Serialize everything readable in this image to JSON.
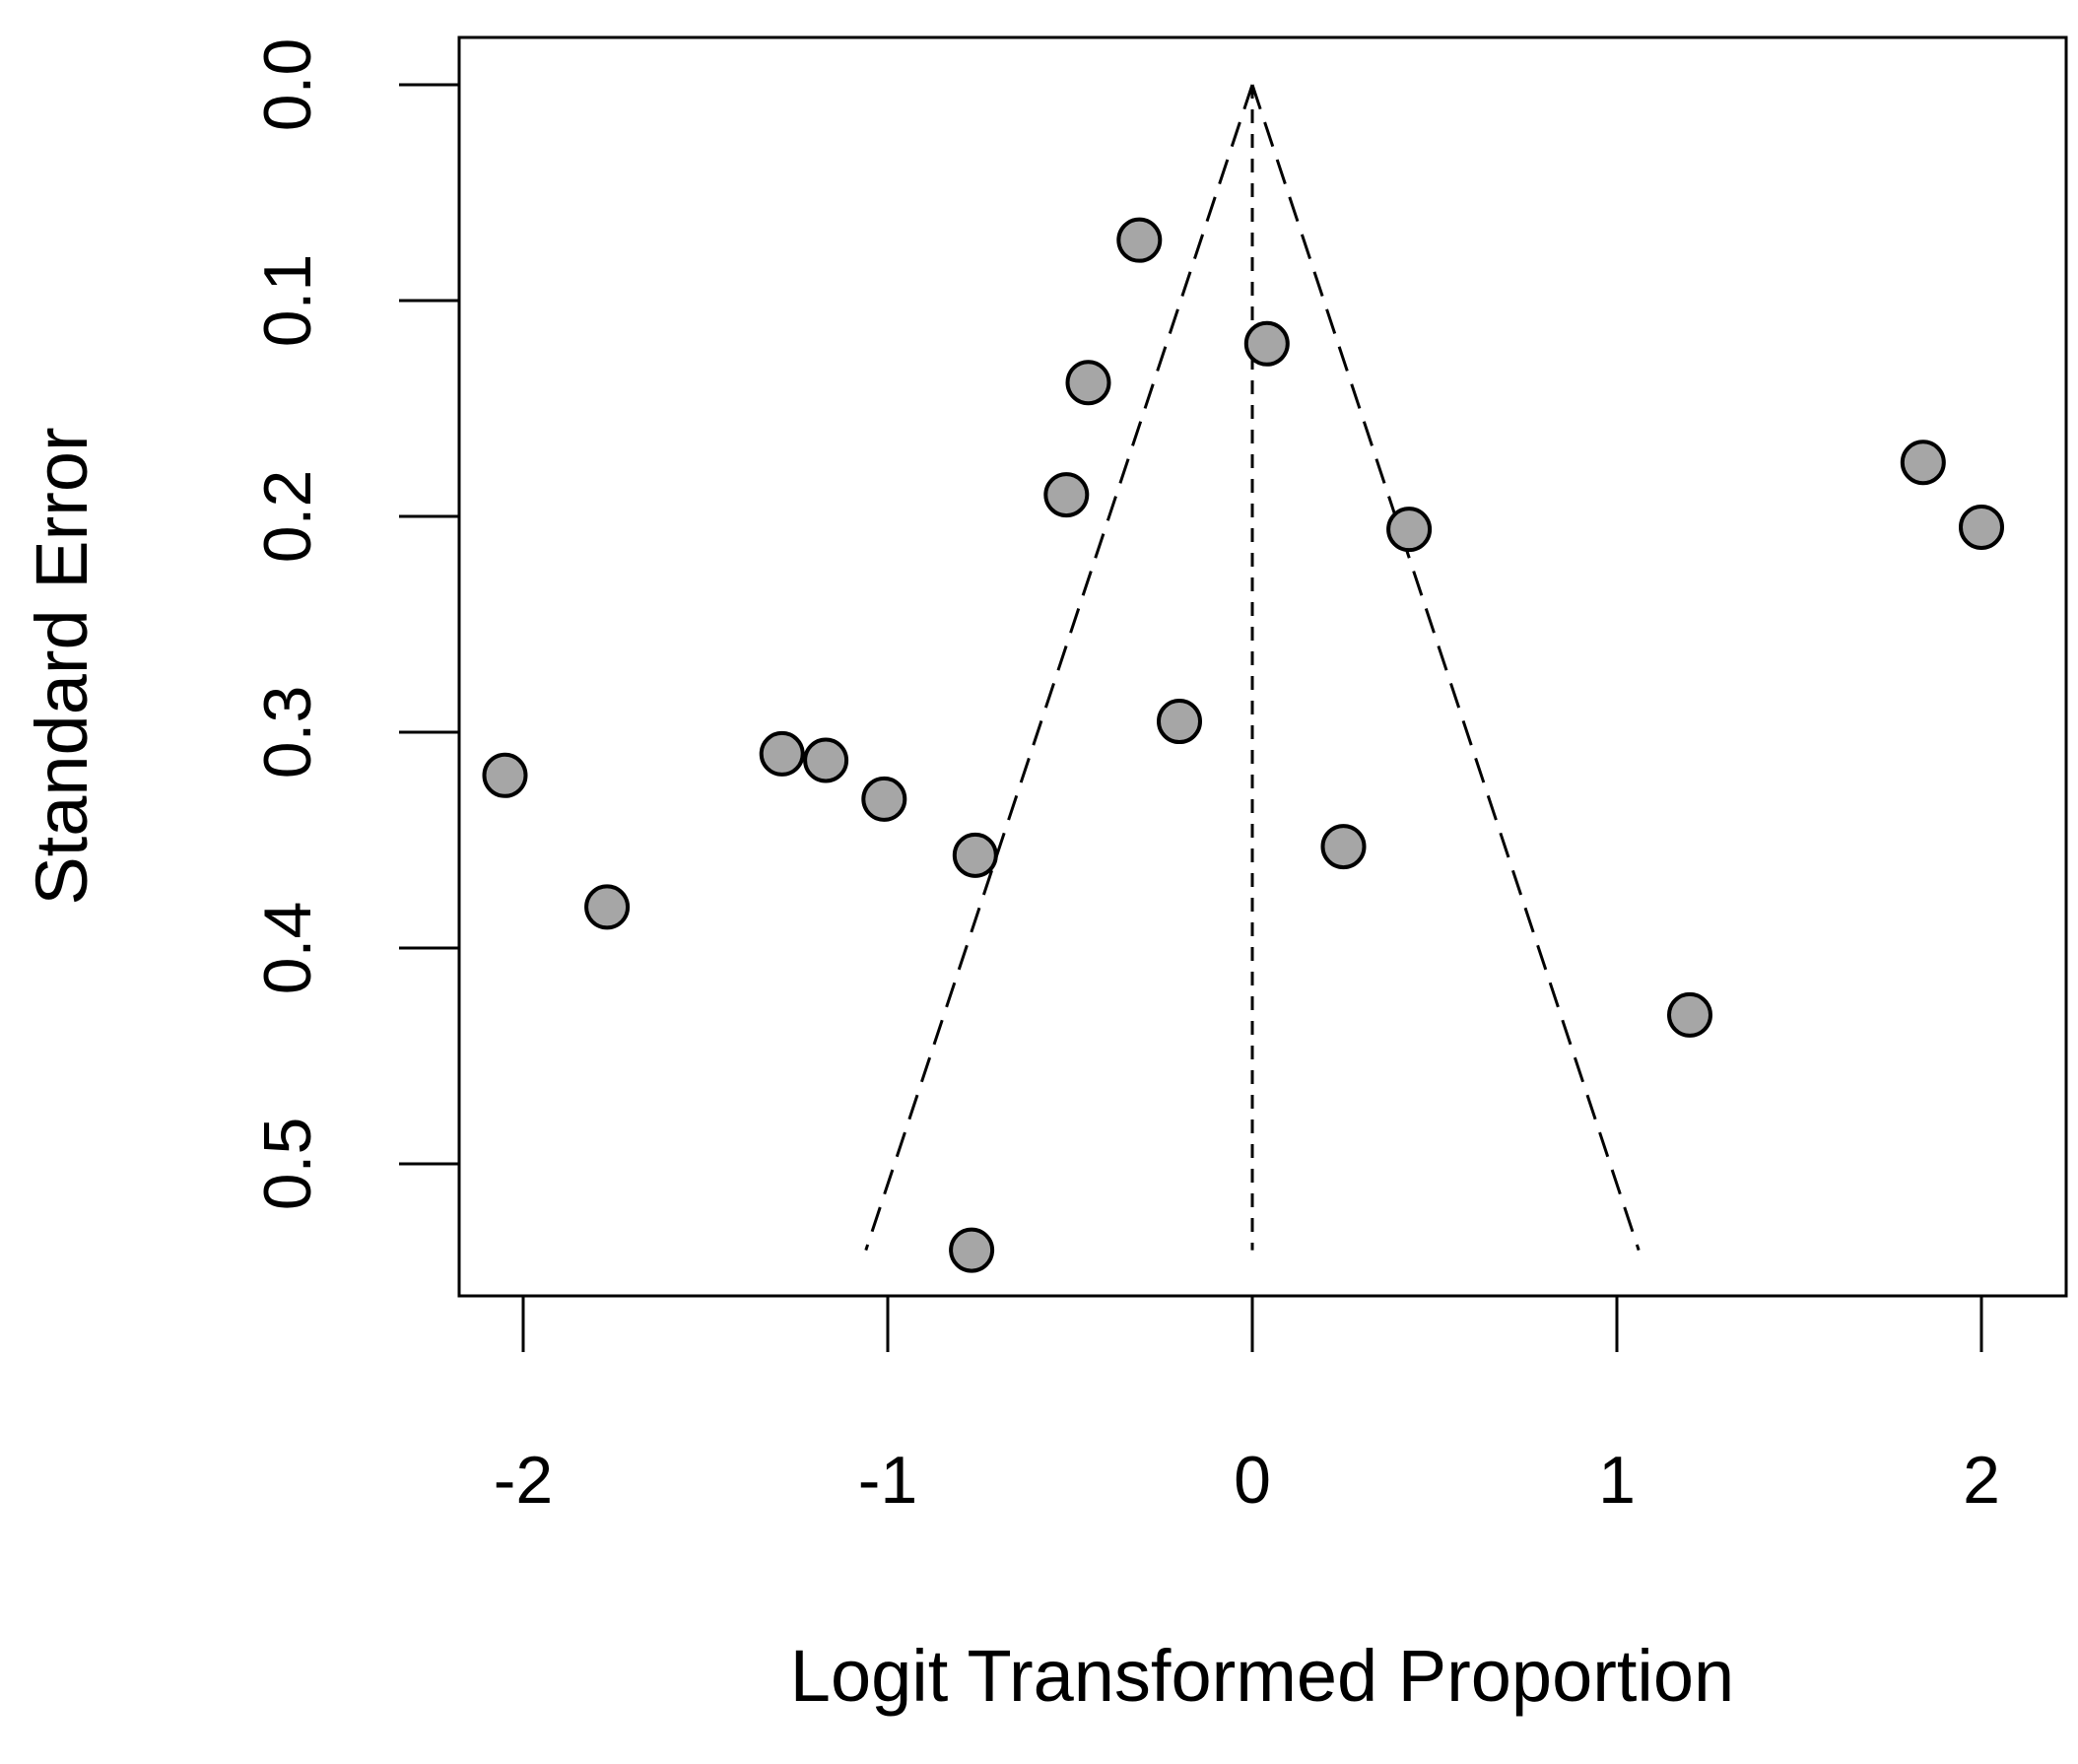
{
  "chart_data": {
    "type": "scatter",
    "title": "",
    "xlabel": "Logit Transformed Proportion",
    "ylabel": "Standard Error",
    "xlim": [
      -2.2,
      2.2
    ],
    "ylim": [
      0.0,
      0.56
    ],
    "y_inverted": true,
    "grid": false,
    "legend": "none",
    "x_ticks": [
      "-2",
      "-1",
      "0",
      "1",
      "2"
    ],
    "y_ticks": [
      "0.0",
      "0.1",
      "0.2",
      "0.3",
      "0.4",
      "0.5"
    ],
    "funnel": {
      "center": 0.0,
      "se_max": 0.54,
      "lower_at_se_max": -1.06,
      "upper_at_se_max": 1.06
    },
    "points": [
      {
        "x": -0.31,
        "y": 0.072
      },
      {
        "x": 0.04,
        "y": 0.12
      },
      {
        "x": -0.45,
        "y": 0.138
      },
      {
        "x": -0.51,
        "y": 0.19
      },
      {
        "x": 1.84,
        "y": 0.175
      },
      {
        "x": 2.0,
        "y": 0.205
      },
      {
        "x": 0.43,
        "y": 0.206
      },
      {
        "x": -0.2,
        "y": 0.295
      },
      {
        "x": -1.29,
        "y": 0.31
      },
      {
        "x": -1.17,
        "y": 0.313
      },
      {
        "x": -1.01,
        "y": 0.331
      },
      {
        "x": -2.05,
        "y": 0.32
      },
      {
        "x": -0.76,
        "y": 0.357
      },
      {
        "x": 0.25,
        "y": 0.353
      },
      {
        "x": -1.77,
        "y": 0.381
      },
      {
        "x": 1.2,
        "y": 0.431
      },
      {
        "x": -0.77,
        "y": 0.54
      }
    ],
    "colors": {
      "point_fill": "#a6a6a6",
      "point_stroke": "#000000",
      "line": "#000000"
    }
  }
}
